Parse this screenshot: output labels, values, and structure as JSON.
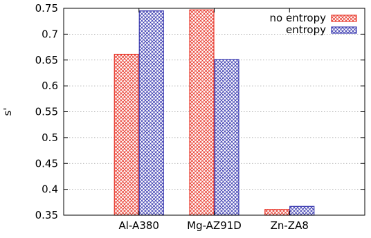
{
  "chart_data": {
    "type": "bar",
    "categories": [
      "Al-A380",
      "Mg-AZ91D",
      "Zn-ZA8"
    ],
    "series": [
      {
        "name": "no entropy",
        "values": [
          0.661,
          0.747,
          0.361
        ],
        "color": "#e8382b",
        "pattern": "crosshatch"
      },
      {
        "name": "entropy",
        "values": [
          0.745,
          0.651,
          0.367
        ],
        "color": "#3a3ab0",
        "pattern": "crosshatch"
      }
    ],
    "xlabel": "",
    "ylabel": "s'",
    "ylim": [
      0.35,
      0.75
    ],
    "yticks": [
      "0.35",
      "0.4",
      "0.45",
      "0.5",
      "0.55",
      "0.6",
      "0.65",
      "0.7",
      "0.75"
    ],
    "grid": true,
    "legend_position": "top-right"
  }
}
